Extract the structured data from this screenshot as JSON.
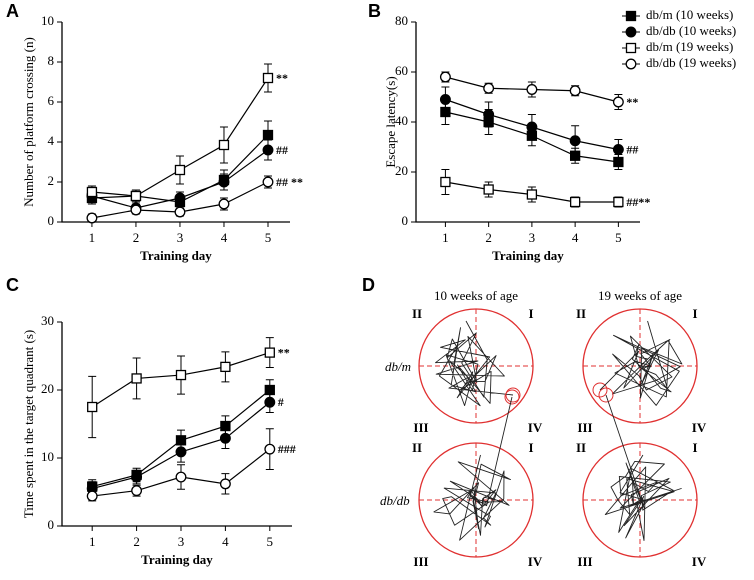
{
  "chart_data": [
    {
      "type": "line",
      "panel": "A",
      "ylabel": "Number of platform crossing (n)",
      "xlabel": "Training day",
      "x": [
        1,
        2,
        3,
        4,
        5
      ],
      "xlim": [
        0.32,
        5.5
      ],
      "xticks": [
        1,
        2,
        3,
        4,
        5
      ],
      "ylim": [
        0,
        10
      ],
      "yticks": [
        0,
        2,
        4,
        6,
        8,
        10
      ],
      "series": [
        {
          "marker": "filled-square",
          "color": "#000000",
          "values": [
            1.2,
            1.3,
            1.0,
            2.1,
            4.35
          ],
          "errors": [
            0.3,
            0.3,
            0.3,
            0.5,
            0.7
          ]
        },
        {
          "marker": "filled-circle",
          "color": "#000000",
          "values": [
            1.3,
            0.7,
            1.2,
            2.0,
            3.6
          ],
          "errors": [
            0.3,
            0.2,
            0.3,
            0.4,
            0.5
          ],
          "annotation": "##"
        },
        {
          "marker": "open-square",
          "color": "#000000",
          "values": [
            1.5,
            1.3,
            2.6,
            3.85,
            7.2
          ],
          "errors": [
            0.3,
            0.3,
            0.7,
            0.9,
            0.7
          ],
          "annotation": "**"
        },
        {
          "marker": "open-circle",
          "color": "#000000",
          "values": [
            0.2,
            0.6,
            0.5,
            0.9,
            2.0
          ],
          "errors": [
            0.2,
            0.2,
            0.2,
            0.3,
            0.3
          ],
          "annotation": "## **"
        }
      ]
    },
    {
      "type": "line",
      "panel": "B",
      "ylabel": "Escape latency(s)",
      "xlabel": "Training day",
      "x": [
        1,
        2,
        3,
        4,
        5
      ],
      "xlim": [
        0.32,
        5.5
      ],
      "xticks": [
        1,
        2,
        3,
        4,
        5
      ],
      "ylim": [
        0,
        80
      ],
      "yticks": [
        0,
        20,
        40,
        60,
        80
      ],
      "legend": "upper right",
      "series": [
        {
          "name": "db/m (10 weeks)",
          "marker": "filled-square",
          "color": "#000000",
          "values": [
            44,
            40,
            34.5,
            26.5,
            24
          ],
          "errors": [
            5,
            5,
            4,
            3,
            3
          ]
        },
        {
          "name": "db/db (10 weeks)",
          "marker": "filled-circle",
          "color": "#000000",
          "values": [
            49,
            43,
            38,
            32.5,
            29
          ],
          "errors": [
            5,
            5,
            5,
            6,
            4
          ],
          "annotation": "##"
        },
        {
          "name": "db/m (19 weeks)",
          "marker": "open-square",
          "color": "#000000",
          "values": [
            16,
            13,
            11,
            8,
            8
          ],
          "errors": [
            5,
            3,
            3,
            2,
            2
          ],
          "annotation": "##**"
        },
        {
          "name": "db/db (19 weeks)",
          "marker": "open-circle",
          "color": "#000000",
          "values": [
            58,
            53.5,
            53,
            52.5,
            48
          ],
          "errors": [
            2,
            2,
            3,
            2,
            3
          ],
          "annotation": "**"
        }
      ]
    },
    {
      "type": "line",
      "panel": "C",
      "ylabel": "Time spent in the target quadrant (s)",
      "xlabel": "Training day",
      "x": [
        1,
        2,
        3,
        4,
        5
      ],
      "xlim": [
        0.32,
        5.5
      ],
      "xticks": [
        1,
        2,
        3,
        4,
        5
      ],
      "ylim": [
        0,
        30
      ],
      "yticks": [
        0,
        10,
        20,
        30
      ],
      "series": [
        {
          "marker": "filled-square",
          "color": "#000000",
          "values": [
            5.8,
            7.5,
            12.6,
            14.7,
            20
          ],
          "errors": [
            1,
            1,
            1.5,
            1.5,
            1.5
          ]
        },
        {
          "marker": "filled-circle",
          "color": "#000000",
          "values": [
            5.5,
            7.2,
            10.9,
            12.9,
            18.2
          ],
          "errors": [
            1,
            1,
            1.5,
            1.5,
            1.5
          ],
          "annotation": "#"
        },
        {
          "marker": "open-square",
          "color": "#000000",
          "values": [
            17.5,
            21.7,
            22.2,
            23.4,
            25.5
          ],
          "errors": [
            4.5,
            3,
            2.8,
            2.2,
            2.2
          ],
          "annotation": "**"
        },
        {
          "marker": "open-circle",
          "color": "#000000",
          "values": [
            4.4,
            5.2,
            7.2,
            6.2,
            11.3
          ],
          "errors": [
            0.7,
            0.8,
            1.8,
            1.5,
            3
          ],
          "annotation": "###"
        }
      ]
    }
  ],
  "panel_d": {
    "panel": "D",
    "columns": [
      "10 weeks of age",
      "19 weeks of age"
    ],
    "rows": [
      "db/m",
      "db/db"
    ],
    "quadrants": [
      "I",
      "II",
      "III",
      "IV"
    ]
  }
}
